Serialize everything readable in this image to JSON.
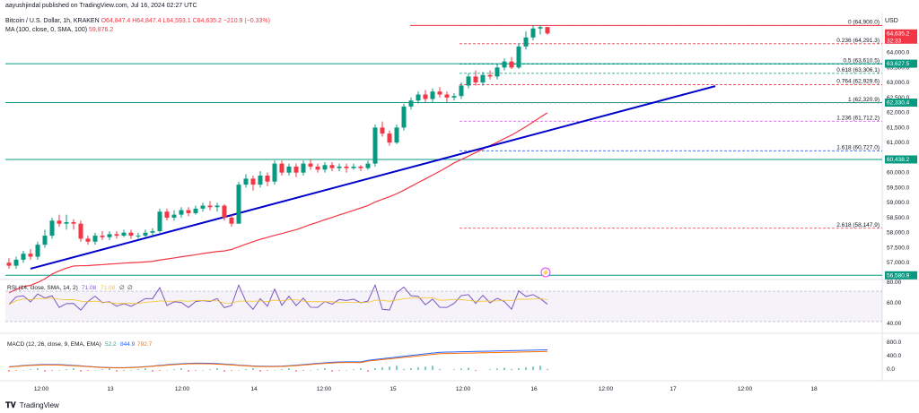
{
  "header": {
    "publisher": "aayushjindal published on TradingView.com, Jul 16, 2024 02:27 UTC"
  },
  "legend": {
    "symbol": "Bitcoin / U.S. Dollar, 1h, KRAKEN",
    "ohlc": "O64,847.4 H64,847.4 L64,593.1 C64,635.2 −210.9 (−0.33%)",
    "ma_label": "MA (100, close, 0, SMA, 100)",
    "ma_value": "59,876.2"
  },
  "price_axis": {
    "currency": "USD",
    "ticks": [
      "64,000.0",
      "63,500.0",
      "63,000.0",
      "62,500.0",
      "62,000.0",
      "61,500.0",
      "61,000.0",
      "60,500.0",
      "60,000.0",
      "59,500.0",
      "59,000.0",
      "58,500.0",
      "58,000.0",
      "57,500.0",
      "57,000.0"
    ],
    "labels": [
      {
        "text": "64,635.2",
        "sub": "32:33",
        "color": "#f23645"
      },
      {
        "text": "63,627.5",
        "color": "#089981"
      },
      {
        "text": "62,330.4",
        "color": "#089981"
      },
      {
        "text": "60,438.2",
        "color": "#089981"
      },
      {
        "text": "56,580.9",
        "color": "#089981"
      }
    ]
  },
  "fib": [
    {
      "label": "0 (64,900.0)",
      "price": 64900,
      "color": "#f23645"
    },
    {
      "label": "0.236 (64,291.3)",
      "price": 64291.3,
      "color": "#f23645"
    },
    {
      "label": "0.5 (63,610.5)",
      "price": 63610.5,
      "color": "#089981"
    },
    {
      "label": "0.618 (63,306.1)",
      "price": 63306.1,
      "color": "#089981"
    },
    {
      "label": "0.764 (62,929.6)",
      "price": 62929.6,
      "color": "#f23645"
    },
    {
      "label": "1 (62,320.9)",
      "price": 62320.9,
      "color": "#9598a1"
    },
    {
      "label": "1.236 (61,712.2)",
      "price": 61712.2,
      "color": "#e040fb"
    },
    {
      "label": "1.618 (60,727.0)",
      "price": 60727,
      "color": "#2962ff"
    },
    {
      "label": "2.618 (58,147.9)",
      "price": 58147.9,
      "color": "#f23645"
    }
  ],
  "rsi": {
    "label": "RSI (14, close, SMA, 14, 2)",
    "value1": "71.08",
    "value2": "71.08",
    "value3": "∅",
    "value4": "∅",
    "ticks": [
      "80.00",
      "60.00",
      "40.00"
    ]
  },
  "macd": {
    "label": "MACD (12, 26, close, 9, EMA, EMA)",
    "value1": "52.2",
    "value2": "844.9",
    "value3": "792.7",
    "ticks": [
      "800.0",
      "400.0",
      "0.0"
    ]
  },
  "time_axis": [
    "12:00",
    "13",
    "12:00",
    "14",
    "12:00",
    "15",
    "12:00",
    "16",
    "12:00",
    "17",
    "12:00",
    "18"
  ],
  "footer": {
    "brand": "TradingView"
  },
  "colors": {
    "up": "#089981",
    "down": "#f23645",
    "ma": "#f23645",
    "trend": "#0000cc",
    "rsi": "#7e57c2",
    "macd": "#2962ff",
    "signal": "#ff6d00"
  },
  "chart_data": {
    "type": "candlestick",
    "title": "Bitcoin / U.S. Dollar, 1h, KRAKEN",
    "ylim": [
      56500,
      65300
    ],
    "candles": [
      [
        57000,
        56900,
        57150,
        56800
      ],
      [
        56900,
        57100,
        57200,
        56800
      ],
      [
        57100,
        57300,
        57400,
        57000
      ],
      [
        57300,
        57200,
        57450,
        57100
      ],
      [
        57200,
        57600,
        57700,
        57100
      ],
      [
        57600,
        57900,
        58100,
        57500
      ],
      [
        57900,
        58400,
        58500,
        57800
      ],
      [
        58400,
        58300,
        58600,
        58200
      ],
      [
        58300,
        58350,
        58600,
        58100
      ],
      [
        58350,
        58300,
        58450,
        58100
      ],
      [
        58300,
        57800,
        58400,
        57700
      ],
      [
        57800,
        57700,
        57900,
        57600
      ],
      [
        57700,
        57900,
        58000,
        57600
      ],
      [
        57900,
        57850,
        58050,
        57750
      ],
      [
        57850,
        57950,
        58050,
        57750
      ],
      [
        57950,
        57900,
        58050,
        57800
      ],
      [
        57900,
        58000,
        58100,
        57850
      ],
      [
        58000,
        57900,
        58100,
        57800
      ],
      [
        57900,
        57900,
        58000,
        57800
      ],
      [
        57900,
        58000,
        58100,
        57850
      ],
      [
        58000,
        58050,
        58150,
        57900
      ],
      [
        58050,
        58700,
        58800,
        58000
      ],
      [
        58700,
        58500,
        58800,
        58400
      ],
      [
        58500,
        58600,
        58750,
        58400
      ],
      [
        58600,
        58750,
        58850,
        58500
      ],
      [
        58750,
        58650,
        58850,
        58550
      ],
      [
        58650,
        58800,
        58900,
        58600
      ],
      [
        58800,
        58900,
        59000,
        58700
      ],
      [
        58900,
        58850,
        59050,
        58750
      ],
      [
        58850,
        58900,
        59000,
        58700
      ],
      [
        58900,
        58500,
        58950,
        58400
      ],
      [
        58500,
        58300,
        58600,
        58200
      ],
      [
        58300,
        59600,
        59700,
        58300
      ],
      [
        59600,
        59800,
        59950,
        59500
      ],
      [
        59800,
        59600,
        59900,
        59400
      ],
      [
        59600,
        59900,
        60050,
        59500
      ],
      [
        59900,
        59700,
        60000,
        59550
      ],
      [
        59700,
        60300,
        60400,
        59600
      ],
      [
        60300,
        60000,
        60400,
        59900
      ],
      [
        60000,
        60200,
        60300,
        59900
      ],
      [
        60200,
        60000,
        60300,
        59850
      ],
      [
        60000,
        60300,
        60400,
        59900
      ],
      [
        60300,
        60200,
        60450,
        60100
      ],
      [
        60200,
        60100,
        60300,
        60000
      ],
      [
        60100,
        60250,
        60350,
        60000
      ],
      [
        60250,
        60150,
        60350,
        60050
      ],
      [
        60150,
        60200,
        60300,
        60050
      ],
      [
        60200,
        60150,
        60300,
        60000
      ],
      [
        60150,
        60200,
        60300,
        60100
      ],
      [
        60200,
        60150,
        60250,
        60050
      ],
      [
        60150,
        60300,
        60400,
        60100
      ],
      [
        60300,
        61500,
        61600,
        60200
      ],
      [
        61500,
        61300,
        61700,
        61200
      ],
      [
        61300,
        61000,
        61400,
        60900
      ],
      [
        61000,
        61500,
        61600,
        60950
      ],
      [
        61500,
        62200,
        62300,
        61400
      ],
      [
        62200,
        62400,
        62500,
        62100
      ],
      [
        62400,
        62600,
        62700,
        62300
      ],
      [
        62600,
        62450,
        62750,
        62350
      ],
      [
        62450,
        62700,
        62800,
        62350
      ],
      [
        62700,
        62600,
        62850,
        62500
      ],
      [
        62600,
        62500,
        62700,
        62350
      ],
      [
        62500,
        62550,
        62650,
        62400
      ],
      [
        62550,
        62900,
        63000,
        62450
      ],
      [
        62900,
        63200,
        63300,
        62800
      ],
      [
        63200,
        63000,
        63400,
        62900
      ],
      [
        63000,
        63250,
        63350,
        62900
      ],
      [
        63250,
        63200,
        63400,
        63100
      ],
      [
        63200,
        63500,
        63600,
        63100
      ],
      [
        63500,
        63700,
        63800,
        63400
      ],
      [
        63700,
        63500,
        63850,
        63450
      ],
      [
        63500,
        64200,
        64300,
        63450
      ],
      [
        64200,
        64500,
        64700,
        64100
      ],
      [
        64500,
        64800,
        64900,
        64400
      ],
      [
        64800,
        64847,
        64900,
        64600
      ],
      [
        64847,
        64635,
        64847,
        64593
      ]
    ]
  }
}
